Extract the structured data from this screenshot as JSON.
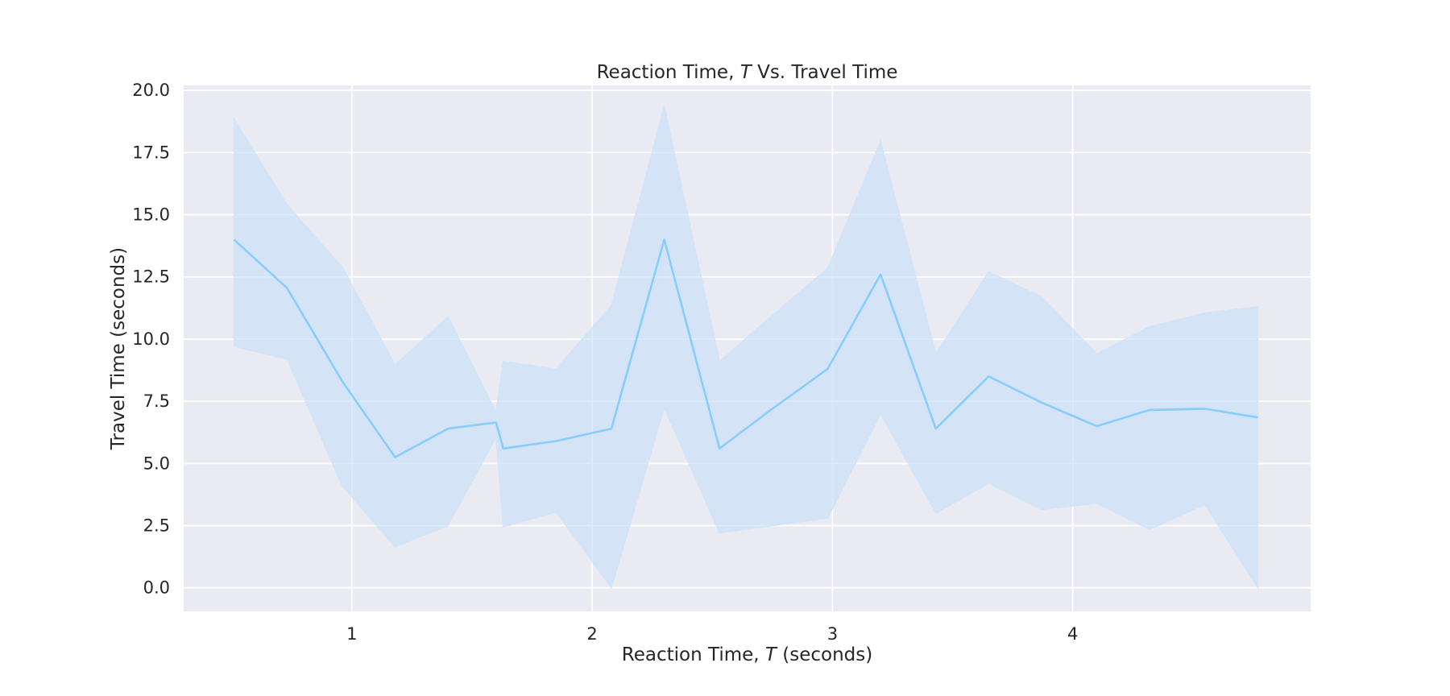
{
  "chart_data": {
    "type": "line",
    "title": {
      "before": "Reaction Time, ",
      "var": "T",
      "after": " Vs. Travel Time"
    },
    "xlabel": {
      "before": "Reaction Time, ",
      "var": "T",
      "after": " (seconds)"
    },
    "ylabel": "Travel Time (seconds)",
    "xlim": [
      0.3,
      4.99
    ],
    "ylim": [
      -0.95,
      20.2
    ],
    "x_ticks": [
      1,
      2,
      3,
      4
    ],
    "x_tick_labels": [
      "1",
      "2",
      "3",
      "4"
    ],
    "y_ticks": [
      0,
      2.5,
      5,
      7.5,
      10,
      12.5,
      15,
      17.5,
      20
    ],
    "y_tick_labels": [
      "0.0",
      "2.5",
      "5.0",
      "7.5",
      "10.0",
      "12.5",
      "15.0",
      "17.5",
      "20.0"
    ],
    "grid": true,
    "legend": "none",
    "colors": {
      "line": "#87cefa",
      "band_fill": "#c4ddf7",
      "band_edge": "#d2e4f7",
      "plot_background": "#eaeaf2",
      "grid": "#ffffff",
      "text": "#262626"
    },
    "series": [
      {
        "x": [
          0.51,
          0.73,
          0.96,
          1.18,
          1.4,
          1.6,
          1.63,
          1.85,
          2.08,
          2.3,
          2.53,
          2.75,
          2.98,
          3.2,
          3.43,
          3.65,
          3.87,
          4.1,
          4.32,
          4.55,
          4.77
        ],
        "y": [
          14.0,
          12.05,
          8.3,
          5.25,
          6.4,
          6.65,
          5.6,
          5.9,
          6.4,
          14.0,
          5.6,
          7.2,
          8.8,
          12.6,
          6.4,
          8.5,
          7.45,
          6.5,
          7.15,
          7.2,
          6.85
        ],
        "lower": [
          9.7,
          9.2,
          4.1,
          1.65,
          2.5,
          6.05,
          2.45,
          3.05,
          0.0,
          7.25,
          2.2,
          2.5,
          2.8,
          7.0,
          3.0,
          4.2,
          3.15,
          3.4,
          2.35,
          3.35,
          0.0
        ],
        "upper": [
          18.85,
          15.4,
          12.9,
          8.95,
          10.9,
          7.05,
          9.1,
          8.8,
          11.35,
          19.35,
          9.1,
          10.95,
          12.85,
          17.95,
          9.4,
          12.7,
          11.7,
          9.4,
          10.5,
          11.05,
          11.3
        ]
      }
    ]
  }
}
